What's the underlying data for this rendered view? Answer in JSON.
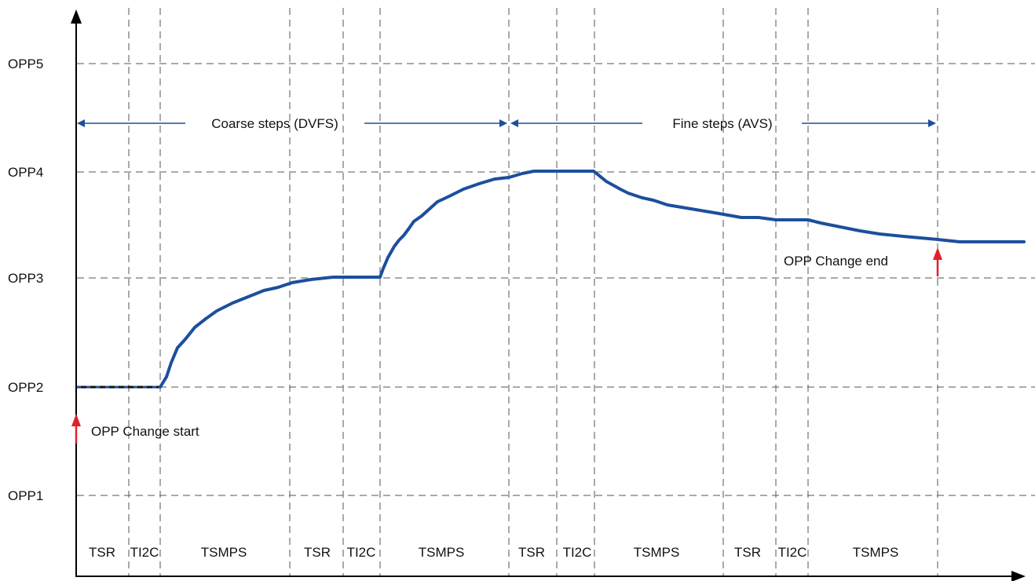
{
  "colors": {
    "curve": "#1c4f9c",
    "span_arrow": "#1c4f9c",
    "marker_arrow": "#e0202a",
    "grid": "#555555",
    "axis": "#000000"
  },
  "levels": [
    "OPP1",
    "OPP2",
    "OPP3",
    "OPP4",
    "OPP5"
  ],
  "spans": {
    "coarse": "Coarse steps (DVFS)",
    "fine": "Fine steps (AVS)"
  },
  "markers": {
    "start": "OPP Change start",
    "end": "OPP Change end"
  },
  "phases": [
    "TSR",
    "TI2C",
    "TSMPS",
    "TSR",
    "TI2C",
    "TSMPS",
    "TSR",
    "TI2C",
    "TSMPS",
    "TSR",
    "TI2C",
    "TSMPS"
  ],
  "icons": [
    "y-axis-arrow-icon",
    "x-axis-arrow-icon",
    "red-up-arrow-icon"
  ]
}
